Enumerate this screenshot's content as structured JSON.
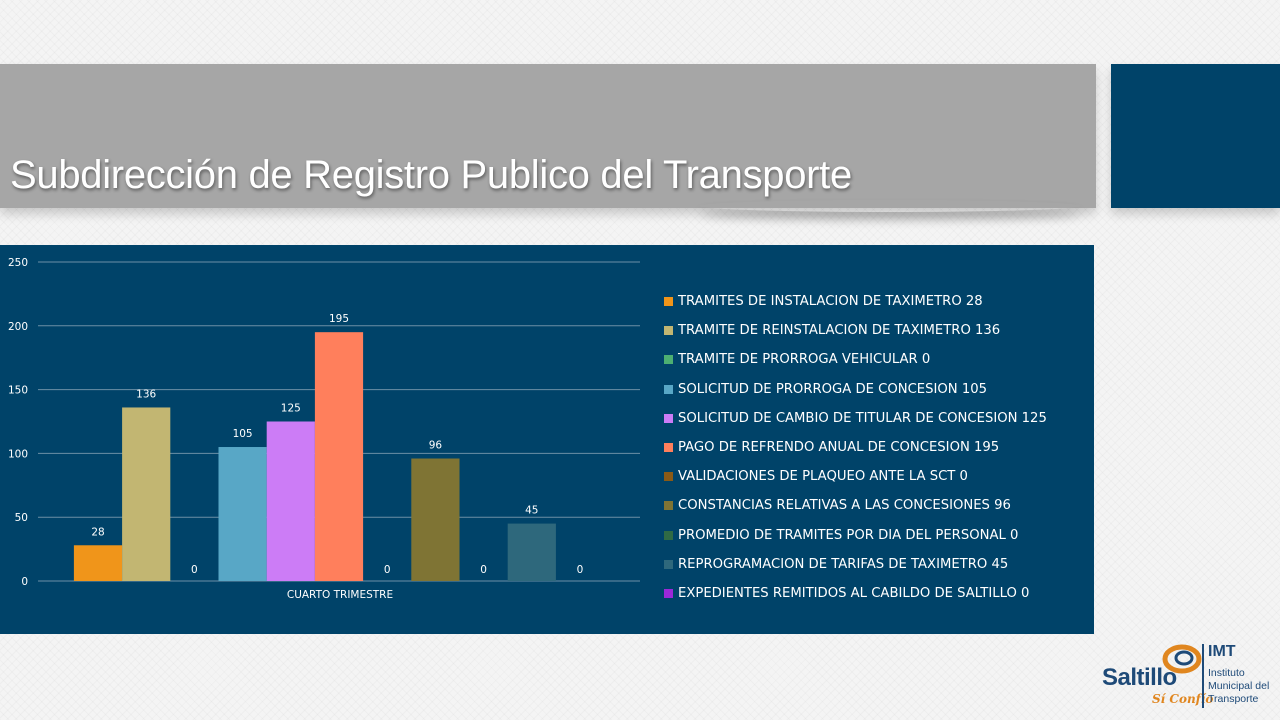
{
  "slide": {
    "title": "Subdirección de Registro Publico del Transporte"
  },
  "colors": {
    "title_bar": "#a6a6a6",
    "accent": "#004369",
    "panel": "#004369",
    "gridline": "#6c8fa6"
  },
  "chart_data": {
    "type": "bar",
    "categories": [
      "CUARTO TRIMESTRE"
    ],
    "ylim": [
      0,
      250
    ],
    "yticks": [
      0,
      50,
      100,
      150,
      200,
      250
    ],
    "grid": true,
    "legend_position": "right",
    "series": [
      {
        "name": "TRAMITES DE INSTALACION DE TAXIMETRO 28",
        "values": [
          28
        ],
        "value_label": "28",
        "color": "#f0951a"
      },
      {
        "name": "TRAMITE DE REINSTALACION DE TAXIMETRO 136",
        "values": [
          136
        ],
        "value_label": "136",
        "color": "#c2b672"
      },
      {
        "name": "TRAMITE DE PRORROGA VEHICULAR 0",
        "values": [
          0
        ],
        "value_label": "0",
        "color": "#4caf72"
      },
      {
        "name": "SOLICITUD DE PRORROGA DE CONCESION 105",
        "values": [
          105
        ],
        "value_label": "105",
        "color": "#58a7c6"
      },
      {
        "name": "SOLICITUD DE CAMBIO DE TITULAR DE CONCESION 125",
        "values": [
          125
        ],
        "value_label": "125",
        "color": "#cc7cf6"
      },
      {
        "name": "PAGO DE REFRENDO ANUAL DE CONCESION 195",
        "values": [
          195
        ],
        "value_label": "195",
        "color": "#ff7f5c"
      },
      {
        "name": "VALIDACIONES DE PLAQUEO ANTE LA SCT 0",
        "values": [
          0
        ],
        "value_label": "0",
        "color": "#8a5a16"
      },
      {
        "name": "CONSTANCIAS RELATIVAS A LAS CONCESIONES 96",
        "values": [
          96
        ],
        "value_label": "96",
        "color": "#7f7434"
      },
      {
        "name": "PROMEDIO DE TRAMITES POR DIA DEL PERSONAL 0",
        "values": [
          0
        ],
        "value_label": "0",
        "color": "#2f6a45"
      },
      {
        "name": "REPROGRAMACION DE TARIFAS DE TAXIMETRO 45",
        "values": [
          45
        ],
        "value_label": "45",
        "color": "#2e687c"
      },
      {
        "name": "EXPEDIENTES REMITIDOS AL CABILDO DE SALTILLO 0",
        "values": [
          0
        ],
        "value_label": "0",
        "color": "#9b28d8"
      }
    ]
  },
  "logo": {
    "wordmark": "Saltillo",
    "script": "Sí Confío",
    "org_acronym": "IMT",
    "org_line1": "Instituto",
    "org_line2": "Municipal del",
    "org_line3": "Transporte",
    "primary_color": "#1e4a78",
    "secondary_color": "#e0861f"
  }
}
